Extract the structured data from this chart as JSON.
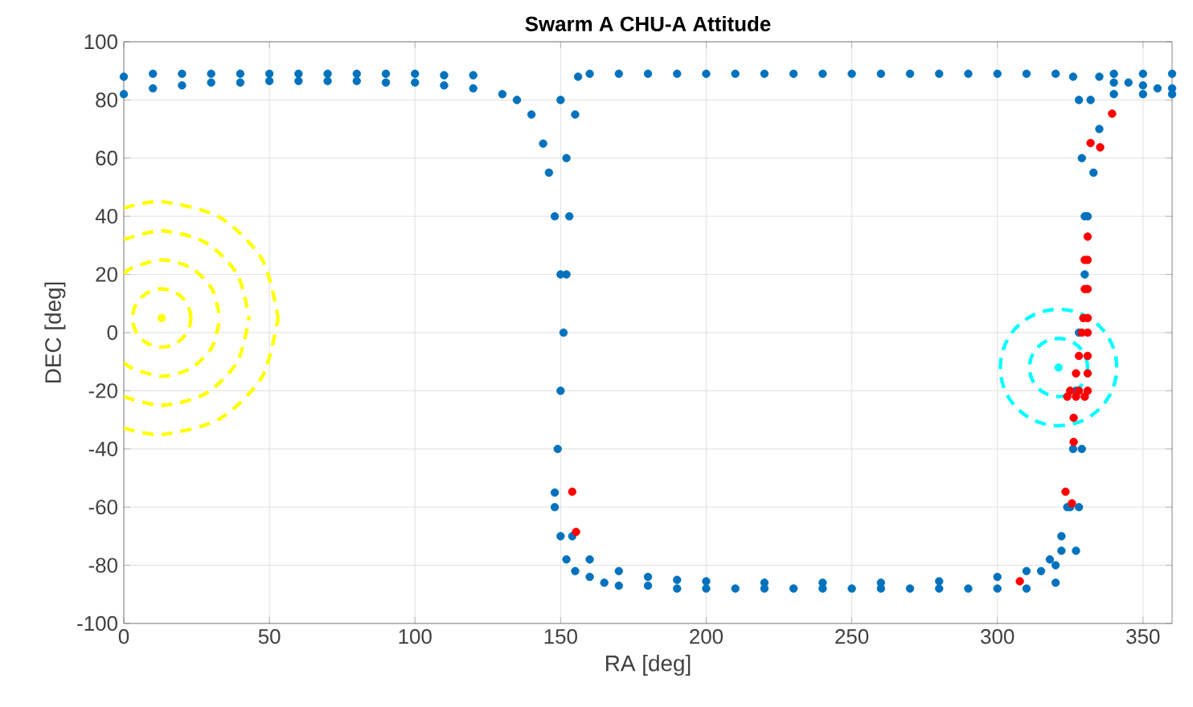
{
  "chart_data": {
    "type": "scatter",
    "title": "Swarm A CHU-A Attitude",
    "xlabel": "RA [deg]",
    "ylabel": "DEC [deg]",
    "xlim": [
      0,
      360
    ],
    "ylim": [
      -100,
      100
    ],
    "xticks": [
      0,
      50,
      100,
      150,
      200,
      250,
      300,
      350
    ],
    "yticks": [
      -100,
      -80,
      -60,
      -40,
      -20,
      0,
      20,
      40,
      60,
      80,
      100
    ],
    "grid": true,
    "series": [
      {
        "type": "scatter",
        "marker": "circle",
        "color": "#0072bd",
        "x": [
          0,
          0,
          10,
          10,
          20,
          20,
          30,
          30,
          40,
          40,
          50,
          50,
          60,
          60,
          70,
          70,
          80,
          80,
          90,
          90,
          100,
          100,
          110,
          110,
          120,
          120,
          130,
          135,
          140,
          144,
          146,
          148,
          150,
          151,
          150,
          149,
          148,
          148,
          150,
          152,
          153,
          152,
          155,
          156,
          160,
          170,
          180,
          190,
          200,
          210,
          220,
          230,
          240,
          250,
          260,
          270,
          280,
          290,
          300,
          310,
          320,
          326,
          328,
          329,
          330,
          330,
          328,
          327,
          326,
          325,
          322,
          315,
          332,
          335,
          333,
          331,
          329,
          328,
          327,
          320,
          335,
          340,
          345,
          350,
          355,
          360,
          340,
          350,
          360,
          340,
          350,
          360,
          150,
          152,
          155,
          160,
          165,
          170,
          180,
          190,
          200,
          210,
          220,
          230,
          240,
          250,
          260,
          270,
          280,
          290,
          300,
          310,
          320,
          154,
          160,
          170,
          180,
          190,
          200,
          220,
          240,
          260,
          280,
          300,
          310,
          318,
          322,
          324
        ],
        "values": [
          82,
          88,
          84,
          89,
          85,
          89,
          86,
          89,
          86,
          89,
          86.5,
          89,
          86.5,
          89,
          86.5,
          89,
          86.5,
          89,
          86,
          89,
          86,
          89,
          85,
          88.5,
          84,
          88.5,
          82,
          80,
          75,
          65,
          55,
          40,
          20,
          0,
          -20,
          -40,
          -55,
          -60,
          80,
          60,
          40,
          20,
          75,
          88,
          89,
          89,
          89,
          89,
          89,
          89,
          89,
          89,
          89,
          89,
          89,
          89,
          89,
          89,
          89,
          89,
          89,
          88,
          80,
          60,
          40,
          20,
          0,
          -20,
          -40,
          -60,
          -75,
          -82,
          80,
          70,
          55,
          40,
          -40,
          -60,
          -75,
          -80,
          88,
          86,
          86,
          85,
          84,
          84,
          89,
          89,
          89,
          82,
          82,
          82,
          -70,
          -78,
          -82,
          -84,
          -86,
          -87,
          -87,
          -88,
          -88,
          -88,
          -88,
          -88,
          -88,
          -88,
          -88,
          -88,
          -88,
          -88,
          -88,
          -88,
          -86,
          -70,
          -78,
          -82,
          -84,
          -85,
          -85.5,
          -86,
          -86,
          -86,
          -85.5,
          -84,
          -82,
          -78,
          -70,
          -60
        ]
      },
      {
        "type": "scatter",
        "marker": "circle",
        "color": "#ff0000",
        "x": [
          331,
          330,
          331,
          330,
          331,
          329.5,
          331,
          329,
          331,
          328,
          331,
          327,
          331,
          325,
          328,
          331,
          324,
          327,
          330,
          339.4,
          332,
          335.3,
          326.2,
          326.2,
          323.4,
          325.6,
          307.7,
          154,
          155.3
        ],
        "values": [
          33,
          25,
          25,
          15,
          15,
          5,
          5,
          0,
          0,
          -8,
          -8,
          -14,
          -14,
          -20,
          -20,
          -20,
          -22,
          -22,
          -22,
          75.3,
          65.2,
          63.7,
          -29.3,
          -37.6,
          -54.7,
          -58.7,
          -85.5,
          -54.7,
          -68.5
        ]
      },
      {
        "type": "line",
        "color": "#ffff00",
        "line_style": "dashed",
        "x": [
          0,
          3,
          13,
          23,
          30.3,
          33
        ],
        "values": [
          20.2,
          22.3,
          25,
          22.3,
          15,
          5
        ]
      },
      {
        "type": "line",
        "color": "#ffff00",
        "line_style": "dashed",
        "x": [
          0,
          3,
          13,
          23,
          30.3,
          33
        ],
        "values": [
          -10.2,
          -12.3,
          -15,
          -12.3,
          -5,
          5
        ]
      },
      {
        "type": "line",
        "color": "#ffff00",
        "line_style": "dashed",
        "x": [
          0,
          13,
          28,
          39,
          43
        ],
        "values": [
          32,
          35,
          31,
          20,
          5
        ]
      },
      {
        "type": "line",
        "color": "#ffff00",
        "line_style": "dashed",
        "x": [
          0,
          13,
          28,
          39,
          43
        ],
        "values": [
          -22,
          -25,
          -21,
          -10,
          5
        ]
      },
      {
        "type": "line",
        "color": "#ffff00",
        "line_style": "dashed",
        "x": [
          0,
          13,
          33,
          47.6,
          53
        ],
        "values": [
          42.8,
          45,
          39.6,
          25,
          5
        ]
      },
      {
        "type": "line",
        "color": "#ffff00",
        "line_style": "dashed",
        "x": [
          0,
          13,
          33,
          47.6,
          53
        ],
        "values": [
          -32.8,
          -35,
          -29.6,
          -15,
          5
        ]
      },
      {
        "type": "scatter",
        "marker": "circle",
        "color": "#ffff00",
        "x": [
          13
        ],
        "values": [
          5
        ]
      },
      {
        "type": "scatter",
        "marker": "circle",
        "color": "#00ffff",
        "x": [
          321
        ],
        "values": [
          -12
        ]
      }
    ]
  }
}
